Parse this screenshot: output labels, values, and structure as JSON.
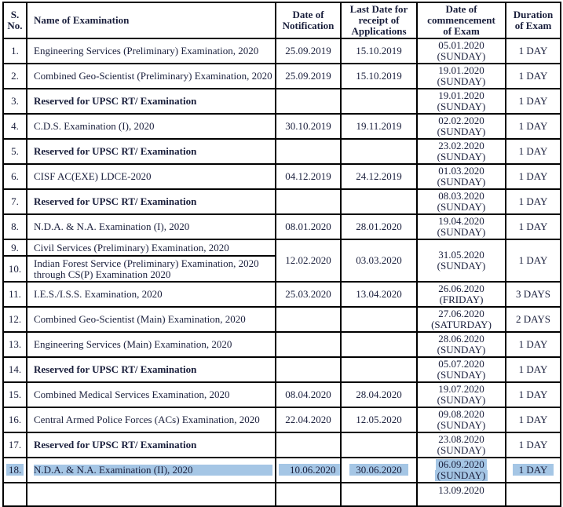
{
  "selection_color": "#a5c6e5",
  "table": {
    "headers": [
      {
        "id": "sno",
        "lines": [
          "S.",
          "No."
        ]
      },
      {
        "id": "name",
        "lines": [
          "Name of Examination"
        ]
      },
      {
        "id": "notification",
        "lines": [
          "Date of",
          "Notification"
        ]
      },
      {
        "id": "last_date",
        "lines": [
          "Last Date for",
          "receipt of",
          "Applications"
        ]
      },
      {
        "id": "commencement",
        "lines": [
          "Date of",
          "commencement",
          "of Exam"
        ]
      },
      {
        "id": "duration",
        "lines": [
          "Duration",
          "of Exam"
        ]
      }
    ],
    "rows": [
      {
        "sno": "1.",
        "name": "Engineering Services (Preliminary) Examination, 2020",
        "notif": "25.09.2019",
        "last": "15.10.2019",
        "comm": [
          "05.01.2020",
          "(SUNDAY)"
        ],
        "dur": "1 DAY"
      },
      {
        "sno": "2.",
        "name": "Combined Geo-Scientist  (Preliminary) Examination, 2020",
        "notif": "25.09.2019",
        "last": "15.10.2019",
        "comm": [
          "19.01.2020",
          "(SUNDAY)"
        ],
        "dur": "1 DAY"
      },
      {
        "sno": "3.",
        "name": "Reserved for UPSC RT/ Examination",
        "bold": true,
        "notif": "",
        "last": "",
        "comm": [
          "19.01.2020",
          "(SUNDAY)"
        ],
        "dur": "1 DAY"
      },
      {
        "sno": "4.",
        "name": "C.D.S. Examination (I), 2020",
        "notif": "30.10.2019",
        "last": "19.11.2019",
        "comm": [
          "02.02.2020",
          "(SUNDAY)"
        ],
        "dur": "1 DAY"
      },
      {
        "sno": "5.",
        "name": "Reserved for UPSC RT/ Examination",
        "bold": true,
        "notif": "",
        "last": "",
        "comm": [
          "23.02.2020",
          "(SUNDAY)"
        ],
        "dur": "1 DAY"
      },
      {
        "sno": "6.",
        "name": "CISF AC(EXE) LDCE-2020",
        "notif": "04.12.2019",
        "last": "24.12.2019",
        "comm": [
          "01.03.2020",
          "(SUNDAY)"
        ],
        "dur": "1 DAY"
      },
      {
        "sno": "7.",
        "name": "Reserved for UPSC RT/ Examination",
        "bold": true,
        "notif": "",
        "last": "",
        "comm": [
          "08.03.2020",
          "(SUNDAY)"
        ],
        "dur": "1 DAY"
      },
      {
        "sno": "8.",
        "name": "N.D.A. & N.A.  Examination (I), 2020",
        "notif": "08.01.2020",
        "last": "28.01.2020",
        "comm": [
          "19.04.2020",
          "(SUNDAY)"
        ],
        "dur": "1 DAY"
      },
      {
        "sno": "9.",
        "name": "Civil Services (Preliminary)  Examination, 2020",
        "merge": "start",
        "notif": "12.02.2020",
        "last": "03.03.2020",
        "comm": [
          "31.05.2020",
          "(SUNDAY)"
        ],
        "dur": "1 DAY"
      },
      {
        "sno": "10.",
        "name": "Indian Forest Service (Preliminary)  Examination, 2020",
        "name2": "through CS(P)  Examination 2020",
        "merge": "cont"
      },
      {
        "sno": "11.",
        "name": "I.E.S./I.S.S.  Examination, 2020",
        "notif": "25.03.2020",
        "last": "13.04.2020",
        "comm": [
          "26.06.2020",
          "(FRIDAY)"
        ],
        "dur": "3 DAYS"
      },
      {
        "sno": "12.",
        "name": "Combined Geo-Scientist  (Main)  Examination, 2020",
        "notif": "",
        "last": "",
        "comm": [
          "27.06.2020",
          "(SATURDAY)"
        ],
        "dur": "2 DAYS"
      },
      {
        "sno": "13.",
        "name": "Engineering Services (Main) Examination, 2020",
        "notif": "",
        "last": "",
        "comm": [
          "28.06.2020",
          "(SUNDAY)"
        ],
        "dur": "1 DAY"
      },
      {
        "sno": "14.",
        "name": "Reserved for UPSC RT/ Examination",
        "bold": true,
        "notif": "",
        "last": "",
        "comm": [
          "05.07.2020",
          "(SUNDAY)"
        ],
        "dur": "1 DAY"
      },
      {
        "sno": "15.",
        "name": "Combined Medical Services  Examination, 2020",
        "notif": "08.04.2020",
        "last": "28.04.2020",
        "comm": [
          "19.07.2020",
          "(SUNDAY)"
        ],
        "dur": "1 DAY"
      },
      {
        "sno": "16.",
        "name": "Central Armed Police Forces (ACs)  Examination, 2020",
        "notif": "22.04.2020",
        "last": "12.05.2020",
        "comm": [
          "09.08.2020",
          "(SUNDAY)"
        ],
        "dur": "1 DAY"
      },
      {
        "sno": "17.",
        "name": "Reserved for UPSC RT/ Examination",
        "bold": true,
        "compact": true,
        "notif": "",
        "last": "",
        "comm": [
          "23.08.2020",
          "(SUNDAY)"
        ],
        "dur": "1 DAY"
      },
      {
        "sno": "18.",
        "name": "N.D.A. & N.A.  Examination (II), 2020",
        "compact": true,
        "highlighted": true,
        "notif": "10.06.2020",
        "last": "30.06.2020",
        "comm": [
          "06.09.2020",
          "(SUNDAY)"
        ],
        "dur": "1 DAY"
      },
      {
        "sno": "",
        "name": "",
        "partial": true,
        "notif": "",
        "last": "",
        "comm": [
          "13.09.2020",
          ""
        ],
        "dur": ""
      }
    ]
  }
}
